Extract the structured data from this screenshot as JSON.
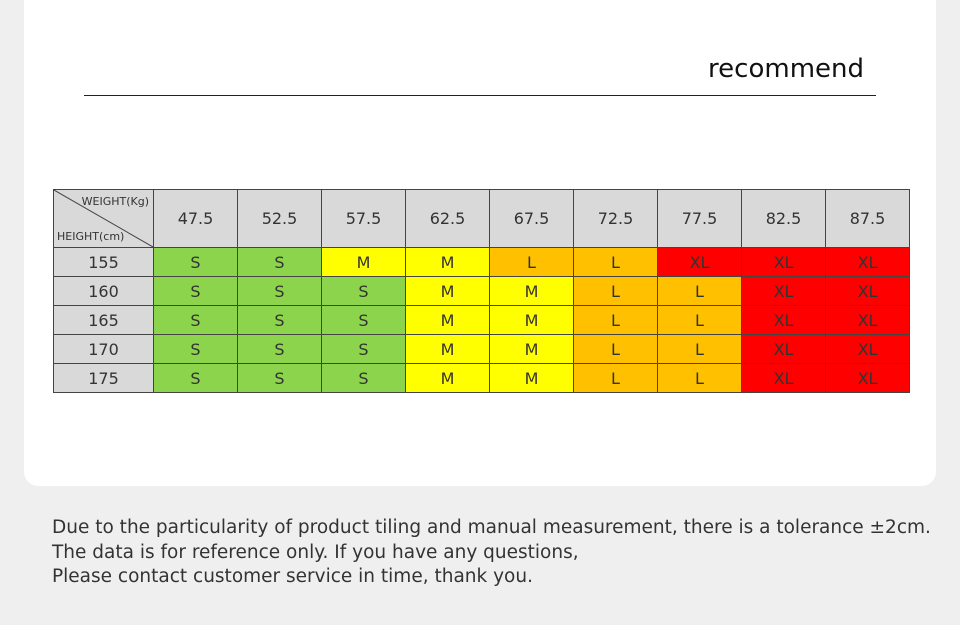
{
  "title": "recommend",
  "table": {
    "weight_label": "WEIGHT(Kg)",
    "height_label": "HEIGHT(cm)",
    "weights": [
      "47.5",
      "52.5",
      "57.5",
      "62.5",
      "67.5",
      "72.5",
      "77.5",
      "82.5",
      "87.5"
    ],
    "rows": [
      {
        "height": "155",
        "sizes": [
          "S",
          "S",
          "M",
          "M",
          "L",
          "L",
          "XL",
          "XL",
          "XL"
        ]
      },
      {
        "height": "160",
        "sizes": [
          "S",
          "S",
          "S",
          "M",
          "M",
          "L",
          "L",
          "XL",
          "XL"
        ]
      },
      {
        "height": "165",
        "sizes": [
          "S",
          "S",
          "S",
          "M",
          "M",
          "L",
          "L",
          "XL",
          "XL"
        ]
      },
      {
        "height": "170",
        "sizes": [
          "S",
          "S",
          "S",
          "M",
          "M",
          "L",
          "L",
          "XL",
          "XL"
        ]
      },
      {
        "height": "175",
        "sizes": [
          "S",
          "S",
          "S",
          "M",
          "M",
          "L",
          "L",
          "XL",
          "XL"
        ]
      }
    ],
    "size_colors": {
      "S": "#8cd44c",
      "M": "#ffff00",
      "L": "#ffc000",
      "XL": "#ff0000"
    }
  },
  "note": {
    "line1": "Due to the particularity of product tiling and manual measurement, there is a tolerance ±2cm.",
    "line2": "The data is for reference only. If you have any questions,",
    "line3": "Please contact customer service in time, thank you."
  }
}
